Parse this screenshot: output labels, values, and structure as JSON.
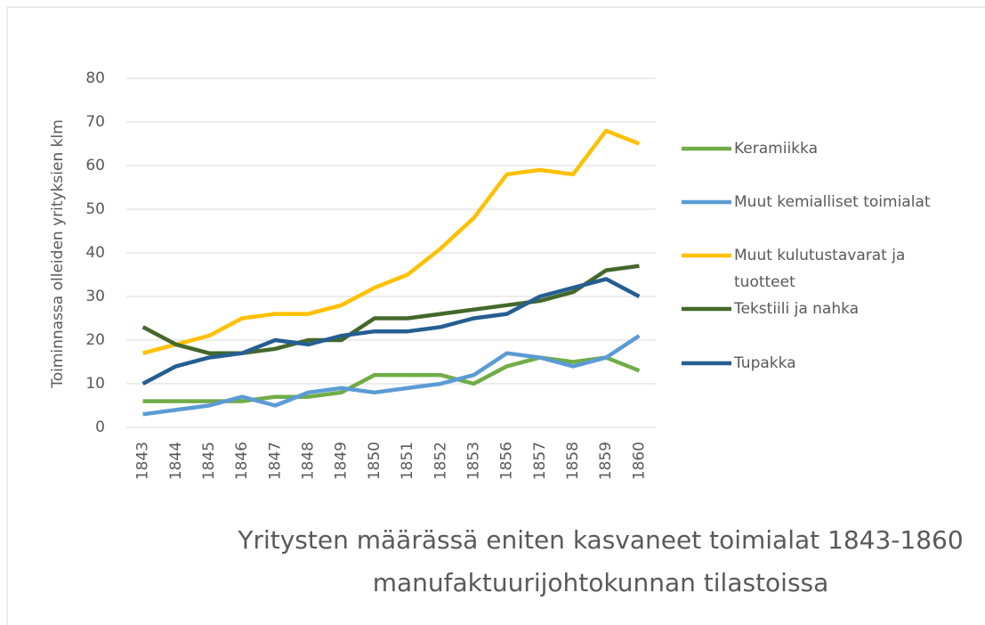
{
  "chart_data": {
    "type": "line",
    "title": "Yritysten määrässä eniten kasvaneet toimialat 1843-1860 manufaktuurijohtokunnan tilastoissa",
    "y_label": "Toiminnassa olleiden yrityksien klm",
    "categories": [
      "1843",
      "1844",
      "1845",
      "1846",
      "1847",
      "1848",
      "1849",
      "1850",
      "1851",
      "1852",
      "1853",
      "1856",
      "1857",
      "1858",
      "1859",
      "1860"
    ],
    "series": [
      {
        "name": "Keramiikka",
        "color": "#70ad47",
        "values": [
          6,
          6,
          6,
          6,
          7,
          7,
          8,
          12,
          12,
          12,
          10,
          14,
          16,
          15,
          16,
          13
        ]
      },
      {
        "name": "Muut kemialliset toimialat",
        "color": "#5b9bd5",
        "values": [
          3,
          4,
          5,
          7,
          5,
          8,
          9,
          8,
          9,
          10,
          12,
          17,
          16,
          14,
          16,
          21
        ]
      },
      {
        "name": "Muut kulutustavarat ja tuotteet",
        "color": "#ffc000",
        "values": [
          17,
          19,
          21,
          25,
          26,
          26,
          28,
          32,
          35,
          41,
          48,
          58,
          59,
          58,
          68,
          65
        ]
      },
      {
        "name": "Tekstiili ja nahka",
        "color": "#43682b",
        "values": [
          23,
          19,
          17,
          17,
          18,
          20,
          20,
          25,
          25,
          26,
          27,
          28,
          29,
          31,
          36,
          37
        ]
      },
      {
        "name": "Tupakka",
        "color": "#255e91",
        "values": [
          10,
          14,
          16,
          17,
          20,
          19,
          21,
          22,
          22,
          23,
          25,
          26,
          30,
          32,
          34,
          30
        ]
      }
    ],
    "ylim": [
      0,
      80
    ],
    "yticks": [
      0,
      10,
      20,
      30,
      40,
      50,
      60,
      70,
      80
    ],
    "grid": true,
    "legend": "right"
  }
}
